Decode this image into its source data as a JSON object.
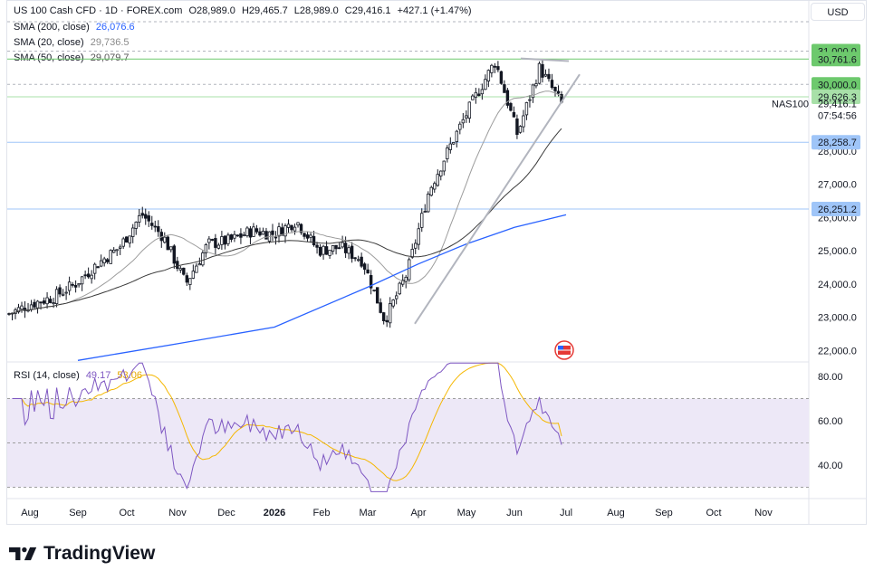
{
  "header": {
    "symbol": "US 100 Cash CFD · 1D · FOREX.com",
    "open": "O28,989.0",
    "high": "H29,465.7",
    "low": "L28,989.0",
    "close": "C29,416.1",
    "change": "+427.1 (+1.47%)",
    "sma200_label": "SMA (200, close)",
    "sma200_value": "26,076.6",
    "sma20_label": "SMA (20, close)",
    "sma20_value": "29,736.5",
    "sma50_label": "SMA (50, close)",
    "sma50_value": "29,079.7",
    "currency_button": "USD"
  },
  "price_axis": {
    "ticks": [
      "31,000.0",
      "30,000.0",
      "28,000.0",
      "27,000.0",
      "26,000.0",
      "25,000.0",
      "24,000.0",
      "23,000.0",
      "22,000.0"
    ],
    "tags": [
      {
        "text": "31,000.0",
        "value": 31000,
        "color": "#6dc96d"
      },
      {
        "text": "30,761.6",
        "value": 30761.6,
        "color": "#6dc96d"
      },
      {
        "text": "30,000.0",
        "value": 30000,
        "color": "#6dc96d"
      },
      {
        "text": "29,626.3",
        "value": 29626.3,
        "color": "#a8e0a8"
      },
      {
        "text": "28,258.7",
        "value": 28258.7,
        "color": "#9fc5f8"
      },
      {
        "text": "26,251.2",
        "value": 26251.2,
        "color": "#9fc5f8"
      }
    ],
    "last_price": "29,416.1",
    "countdown": "07:54:56",
    "symbol_tag": "NAS100"
  },
  "rsi_panel": {
    "label": "RSI (14, close)",
    "rsi_value": "49.17",
    "sma_value": "53.06",
    "ticks": [
      "80.00",
      "60.00",
      "40.00"
    ]
  },
  "time_axis": [
    "Aug",
    "Sep",
    "Oct",
    "Nov",
    "Dec",
    "2026",
    "Feb",
    "Mar",
    "Apr",
    "May",
    "Jun",
    "Jul",
    "Aug",
    "Sep",
    "Oct",
    "Nov"
  ],
  "brand": "TradingView",
  "colors": {
    "up": "#131722",
    "sma20": "#9c9c9c",
    "sma50": "#3a3a3a",
    "sma200": "#2962ff",
    "rsi": "#7e57c2",
    "rsi_sma": "#f5b700",
    "green_line": "#6dc96d",
    "blue_line": "#9fc5f8"
  },
  "chart_data": {
    "type": "candlestick",
    "title": "US 100 Cash CFD · 1D · FOREX.com",
    "x_months": [
      "Aug",
      "Sep",
      "Oct",
      "Nov",
      "Dec",
      "2026",
      "Feb",
      "Mar",
      "Apr",
      "May",
      "Jun",
      "Jul"
    ],
    "close_path": [
      {
        "x": "Aug",
        "y": 23100
      },
      {
        "x": "Aug",
        "y": 23400
      },
      {
        "x": "Sep",
        "y": 23600
      },
      {
        "x": "Sep",
        "y": 24000
      },
      {
        "x": "Oct",
        "y": 24600
      },
      {
        "x": "Oct",
        "y": 25100
      },
      {
        "x": "Nov",
        "y": 26100
      },
      {
        "x": "Nov",
        "y": 25400
      },
      {
        "x": "Nov",
        "y": 24000
      },
      {
        "x": "Dec",
        "y": 25200
      },
      {
        "x": "Dec",
        "y": 25300
      },
      {
        "x": "2026",
        "y": 25600
      },
      {
        "x": "2026",
        "y": 25500
      },
      {
        "x": "Feb",
        "y": 25900
      },
      {
        "x": "Feb",
        "y": 25000
      },
      {
        "x": "Mar",
        "y": 25100
      },
      {
        "x": "Mar",
        "y": 24700
      },
      {
        "x": "Apr",
        "y": 22900
      },
      {
        "x": "Apr",
        "y": 24300
      },
      {
        "x": "Apr",
        "y": 26800
      },
      {
        "x": "May",
        "y": 28200
      },
      {
        "x": "May",
        "y": 29500
      },
      {
        "x": "Jun",
        "y": 30700
      },
      {
        "x": "Jun",
        "y": 28500
      },
      {
        "x": "Jun",
        "y": 30500
      },
      {
        "x": "Jul",
        "y": 29416.1
      }
    ],
    "sma200": [
      {
        "x": "Sep",
        "y": 21700
      },
      {
        "x": "Nov",
        "y": 22200
      },
      {
        "x": "Jan",
        "y": 22700
      },
      {
        "x": "Mar",
        "y": 23900
      },
      {
        "x": "Apr",
        "y": 24600
      },
      {
        "x": "May",
        "y": 25200
      },
      {
        "x": "Jun",
        "y": 25700
      },
      {
        "x": "Jul",
        "y": 26076.6
      }
    ],
    "horizontal_levels": [
      31000,
      30761.6,
      30000,
      29626.3,
      28258.7,
      26251.2
    ],
    "ylim": [
      21800,
      31300
    ],
    "rsi": {
      "ylim": [
        28,
        85
      ],
      "overbought": 70,
      "oversold": 30,
      "last": 49.17,
      "sma_last": 53.06
    }
  }
}
